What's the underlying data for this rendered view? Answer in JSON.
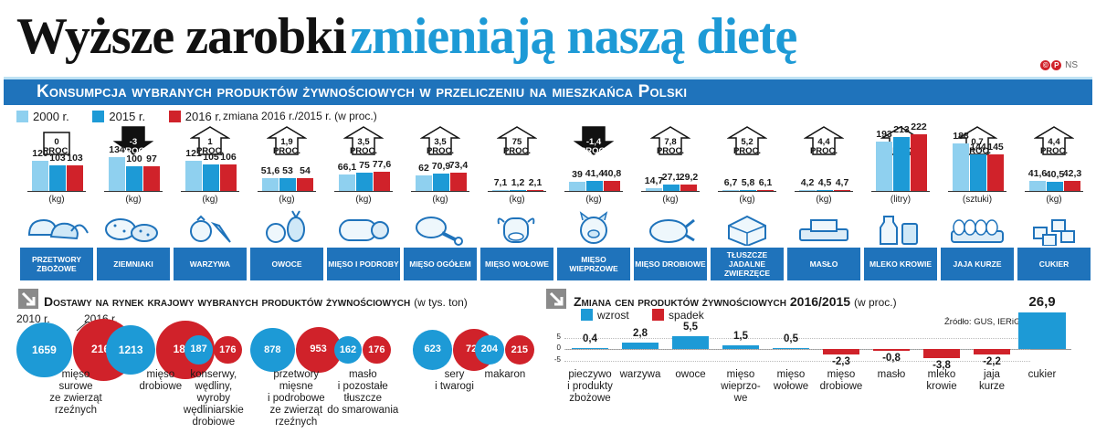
{
  "header": {
    "title_part1": "Wyższe zarobki",
    "title_part2": "zmieniają naszą dietę",
    "logo1": "©",
    "logo2": "P",
    "logo3": "NS"
  },
  "subheader": "Konsumpcja wybranych produktów żywnościowych w przeliczeniu na mieszkańca Polski",
  "legend": {
    "items": [
      {
        "label": "2000 r.",
        "color": "#8fd0ef"
      },
      {
        "label": "2015 r.",
        "color": "#1d9ad6"
      },
      {
        "label": "2016 r.",
        "color": "#d0222a"
      }
    ],
    "change_label": "zmiana 2016 r./2015 r. (w proc.)"
  },
  "chart_data": [
    {
      "type": "bar",
      "categories": [
        "PRZETWORY ZBOŻOWE",
        "ZIEMNIAKI",
        "WARZYWA",
        "OWOCE",
        "MIĘSO I PODROBY",
        "MIĘSO OGÓŁEM",
        "MIĘSO WOŁOWE",
        "MIĘSO WIEPRZOWE",
        "MIĘSO DROBIOWE",
        "TŁUSZCZE JADALNE ZWIERZĘCE",
        "MASŁO",
        "MLEKO KROWIE",
        "JAJA KURZE",
        "CUKIER"
      ],
      "units": [
        "(kg)",
        "(kg)",
        "(kg)",
        "(kg)",
        "(kg)",
        "(kg)",
        "(kg)",
        "(kg)",
        "(kg)",
        "(kg)",
        "(kg)",
        "(litry)",
        "(sztuki)",
        "(kg)"
      ],
      "series": [
        {
          "name": "2000 r.",
          "values": [
            120,
            134,
            121,
            51.6,
            66.1,
            62,
            7.1,
            39,
            14.7,
            6.7,
            4.2,
            193,
            188,
            41.6
          ],
          "labels": [
            "120",
            "134",
            "121",
            "51,6",
            "66,1",
            "62",
            "7,1",
            "39",
            "14,7",
            "6,7",
            "4,2",
            "193",
            "188",
            "41,6"
          ]
        },
        {
          "name": "2015 r.",
          "values": [
            103,
            100,
            105,
            53,
            75,
            70.9,
            1.2,
            41.4,
            27.1,
            5.8,
            4.5,
            213,
            144,
            40.5
          ],
          "labels": [
            "103",
            "100",
            "105",
            "53",
            "75",
            "70,9",
            "1,2",
            "41,4",
            "27,1",
            "5,8",
            "4,5",
            "213",
            "144",
            "40,5"
          ]
        },
        {
          "name": "2016 r.",
          "values": [
            103,
            97,
            106,
            54,
            77.6,
            73.4,
            2.1,
            40.8,
            29.2,
            6.1,
            4.7,
            222,
            145,
            42.3
          ],
          "labels": [
            "103",
            "97",
            "106",
            "54",
            "77,6",
            "73,4",
            "2,1",
            "40,8",
            "29,2",
            "6,1",
            "4,7",
            "222",
            "145",
            "42,3"
          ]
        }
      ],
      "change": [
        {
          "value": "0",
          "unit": "PROC.",
          "direction": "flat"
        },
        {
          "value": "-3",
          "unit": "PROC.",
          "direction": "down"
        },
        {
          "value": "1",
          "unit": "PROC.",
          "direction": "up"
        },
        {
          "value": "1,9",
          "unit": "PROC.",
          "direction": "up"
        },
        {
          "value": "3,5",
          "unit": "PROC.",
          "direction": "up"
        },
        {
          "value": "3,5",
          "unit": "PROC.",
          "direction": "up"
        },
        {
          "value": "75",
          "unit": "PROC.",
          "direction": "up"
        },
        {
          "value": "-1,4",
          "unit": "PROC.",
          "direction": "down"
        },
        {
          "value": "7,8",
          "unit": "PROC.",
          "direction": "up"
        },
        {
          "value": "5,2",
          "unit": "PROC.",
          "direction": "up"
        },
        {
          "value": "4,4",
          "unit": "PROC.",
          "direction": "up"
        },
        {
          "value": "4,2",
          "unit": "PROC.",
          "direction": "up"
        },
        {
          "value": "0,7",
          "unit": "PROC.",
          "direction": "up"
        },
        {
          "value": "4,4",
          "unit": "PROC.",
          "direction": "up"
        }
      ],
      "icons": [
        "bread-icon",
        "potato-icon",
        "vegetables-icon",
        "fruit-icon",
        "sausage-icon",
        "drumstick-icon",
        "cow-icon",
        "pig-icon",
        "chicken-icon",
        "lard-icon",
        "butter-icon",
        "milk-icon",
        "eggs-icon",
        "sugar-icon"
      ]
    },
    {
      "type": "bubble",
      "title": "Dostawy na rynek krajowy wybranych produktów żywnościowych",
      "unit": "(w tys. ton)",
      "year_labels": [
        "2010 r.",
        "2016 r."
      ],
      "categories": [
        "mięso surowe ze zwierząt rzeźnych",
        "mięso drobiowe",
        "konserwy, wędliny, wyroby wędliniarskie drobiowe",
        "przetwory mięsne i podrobowe ze zwierząt rzeźnych",
        "masło i pozostałe tłuszcze do smarowania",
        "sery i twarogi",
        "makaron"
      ],
      "category_lines": [
        [
          "mięso",
          "surowe",
          "ze zwierząt",
          "rzeźnych"
        ],
        [
          "mięso",
          "drobiowe"
        ],
        [
          "konserwy,",
          "wędliny,",
          "wyroby",
          "wędliniarskie",
          "drobiowe"
        ],
        [
          "przetwory",
          "mięsne",
          "i podrobowe",
          "ze zwierząt",
          "rzeźnych"
        ],
        [
          "masło",
          "i pozostałe",
          "tłuszcze",
          "do smarowania"
        ],
        [
          "sery",
          "i twarogi"
        ],
        [
          "makaron"
        ]
      ],
      "series": [
        {
          "name": "2010 r.",
          "values": [
            1659,
            1213,
            187,
            878,
            162,
            623,
            204
          ]
        },
        {
          "name": "2016 r.",
          "values": [
            2167,
            1853,
            176,
            953,
            176,
            720,
            215
          ]
        }
      ]
    },
    {
      "type": "bar",
      "title": "Zmiana cen produktów żywnościowych 2016/2015",
      "unit": "(w proc.)",
      "source": "Źródło: GUS, IERiGŻ",
      "legend": [
        {
          "label": "wzrost",
          "color": "#1d9ad6"
        },
        {
          "label": "spadek",
          "color": "#d0222a"
        }
      ],
      "y_ticks": [
        "5",
        "0",
        "-5"
      ],
      "categories": [
        "pieczywo i produkty zbożowe",
        "warzywa",
        "owoce",
        "mięso wieprzowe",
        "mięso wołowe",
        "mięso drobiowe",
        "masło",
        "mleko krowie",
        "jaja kurze",
        "cukier"
      ],
      "category_lines": [
        [
          "pieczywo",
          "i produkty",
          "zbożowe"
        ],
        [
          "warzywa"
        ],
        [
          "owoce"
        ],
        [
          "mięso",
          "wieprzo-",
          "we"
        ],
        [
          "mięso",
          "wołowe"
        ],
        [
          "mięso",
          "drobiowe"
        ],
        [
          "masło"
        ],
        [
          "mleko",
          "krowie"
        ],
        [
          "jaja",
          "kurze"
        ],
        [
          "cukier"
        ]
      ],
      "values": [
        0.4,
        2.8,
        5.5,
        1.5,
        0.5,
        -2.3,
        -0.8,
        -3.8,
        -2.2,
        26.9
      ],
      "labels": [
        "0,4",
        "2,8",
        "5,5",
        "1,5",
        "0,5",
        "-2,3",
        "-0,8",
        "-3,8",
        "-2,2",
        "26,9"
      ]
    }
  ]
}
